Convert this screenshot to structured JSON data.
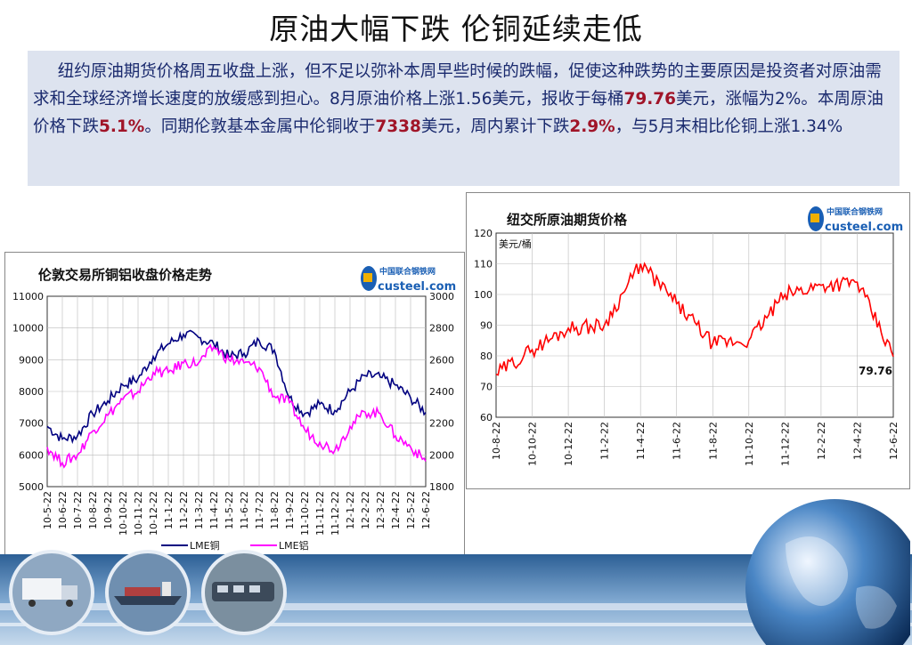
{
  "title": "原油大幅下跌  伦铜延续走低",
  "summary": {
    "p1": "纽约原油期货价格周五收盘上涨，但不足以弥补本周早些时候的跌幅，促使这种跌势的主要原因是投资者对原油需求和全球经济增长速度的放缓感到担心。8月原油价格上涨1.56美元，报收于每桶",
    "v1": "79.76",
    "p2": "美元，涨幅为2%。本周原油价格下跌",
    "v2": "5.1%",
    "p3": "。同期伦敦基本金属中伦铜收于",
    "v3": "7338",
    "p4": "美元，周内累计下跌",
    "v4": "2.9%",
    "p5": "，与5月末相比伦铜上涨1.34%"
  },
  "logo": {
    "cn": "中国联合钢铁网",
    "en": "custeel.com"
  },
  "colors": {
    "copper": "#000080",
    "aluminum": "#ff00ff",
    "crude": "#ff0000",
    "text_box": "#dde3ef",
    "text": "#1a2a6e",
    "highlight": "#a01428"
  },
  "chart_data": [
    {
      "type": "line",
      "title": "伦敦交易所铜铝收盘价格走势",
      "x": [
        "10-5-22",
        "10-6-22",
        "10-7-22",
        "10-8-22",
        "10-9-22",
        "10-10-22",
        "10-11-22",
        "10-12-22",
        "11-1-22",
        "11-2-22",
        "11-3-22",
        "11-4-22",
        "11-5-22",
        "11-6-22",
        "11-7-22",
        "11-8-22",
        "11-9-22",
        "11-10-22",
        "11-11-22",
        "11-12-22",
        "12-1-22",
        "12-2-22",
        "12-3-22",
        "12-4-22",
        "12-5-22",
        "12-6-22"
      ],
      "x_tick_labels": [
        "10-5-22",
        "10-6-22",
        "10-7-22",
        "10-8-22",
        "10-9-22",
        "10-10-22",
        "10-11-22",
        "10-12-22",
        "11-1-22",
        "11-2-22",
        "11-3-22",
        "11-4-22",
        "11-5-22",
        "11-6-22",
        "11-7-22",
        "11-8-22",
        "11-9-22",
        "11-10-22",
        "11-11-22",
        "11-12-22",
        "12-1-22",
        "12-2-22",
        "12-3-22",
        "12-4-22",
        "12-5-22",
        "12-6-22"
      ],
      "y_left_ticks": [
        "11000",
        "10000",
        "9000",
        "8000",
        "7000",
        "6000",
        "5000"
      ],
      "y_right_ticks": [
        "3000",
        "2800",
        "2600",
        "2400",
        "2200",
        "2000",
        "1800"
      ],
      "ylim_left": [
        5000,
        11000
      ],
      "ylim_right": [
        1800,
        3000
      ],
      "series": [
        {
          "name": "LME铜",
          "axis": "left",
          "values": [
            6900,
            6500,
            6600,
            7300,
            7700,
            8200,
            8400,
            9100,
            9500,
            9800,
            9700,
            9500,
            9100,
            9200,
            9600,
            9300,
            7800,
            7300,
            7600,
            7400,
            8000,
            8500,
            8450,
            8200,
            7800,
            7338
          ]
        },
        {
          "name": "LME铝",
          "axis": "right",
          "values": [
            2050,
            1950,
            2000,
            2150,
            2250,
            2350,
            2400,
            2520,
            2520,
            2580,
            2580,
            2680,
            2600,
            2580,
            2550,
            2370,
            2330,
            2160,
            2080,
            2030,
            2180,
            2270,
            2260,
            2120,
            2050,
            1960
          ]
        }
      ],
      "legend": [
        "LME铜",
        "LME铝"
      ],
      "legend_position": "bottom"
    },
    {
      "type": "line",
      "title": "纽交所原油期货价格",
      "ylabel": "美元/桶",
      "x": [
        "10-8-22",
        "10-10-22",
        "10-12-22",
        "11-2-22",
        "11-4-22",
        "11-6-22",
        "11-8-22",
        "11-10-22",
        "11-12-22",
        "12-2-22",
        "12-4-22",
        "12-6-22"
      ],
      "x_tick_labels": [
        "10-8-22",
        "10-10-22",
        "10-12-22",
        "11-2-22",
        "11-4-22",
        "11-6-22",
        "11-8-22",
        "11-10-22",
        "11-12-22",
        "12-2-22",
        "12-4-22",
        "12-6-22"
      ],
      "y_ticks": [
        "120",
        "110",
        "100",
        "90",
        "80",
        "70",
        "60"
      ],
      "ylim": [
        60,
        120
      ],
      "series": [
        {
          "name": "",
          "values": [
            74,
            82,
            89,
            90,
            110,
            97,
            84,
            85,
            100,
            103,
            104,
            79.76
          ]
        }
      ],
      "end_label": "79.76"
    }
  ]
}
